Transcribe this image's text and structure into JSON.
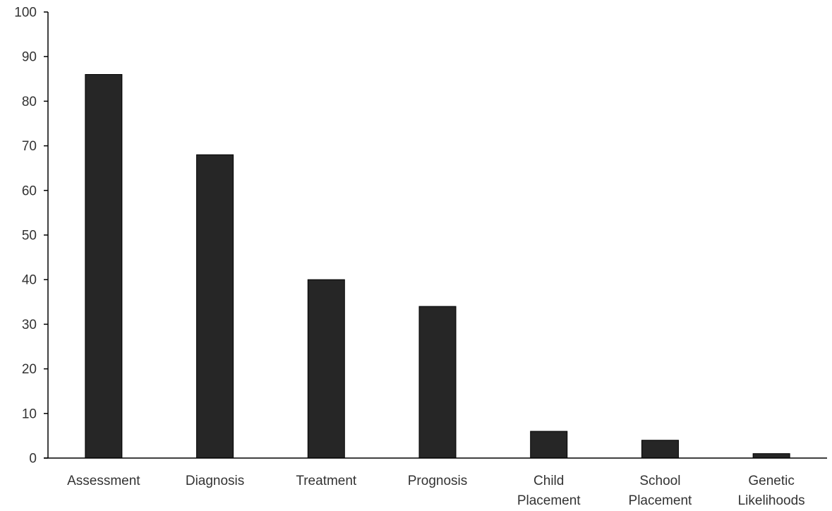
{
  "chart_data": {
    "type": "bar",
    "categories": [
      "Assessment",
      "Diagnosis",
      "Treatment",
      "Prognosis",
      "Child Placement",
      "School Placement",
      "Genetic Likelihoods"
    ],
    "category_lines": [
      [
        "Assessment"
      ],
      [
        "Diagnosis"
      ],
      [
        "Treatment"
      ],
      [
        "Prognosis"
      ],
      [
        "Child",
        "Placement"
      ],
      [
        "School",
        "Placement"
      ],
      [
        "Genetic",
        "Likelihoods"
      ]
    ],
    "values": [
      86,
      68,
      40,
      34,
      6,
      4,
      1
    ],
    "title": "",
    "xlabel": "",
    "ylabel": "",
    "ylim": [
      0,
      100
    ],
    "yticks": [
      "0",
      "10",
      "20",
      "30",
      "40",
      "50",
      "60",
      "70",
      "80",
      "90",
      "100"
    ],
    "grid": false,
    "legend": "none",
    "colors": {
      "bar": "#262626",
      "axis": "#000000",
      "tick_text": "#333333"
    }
  }
}
